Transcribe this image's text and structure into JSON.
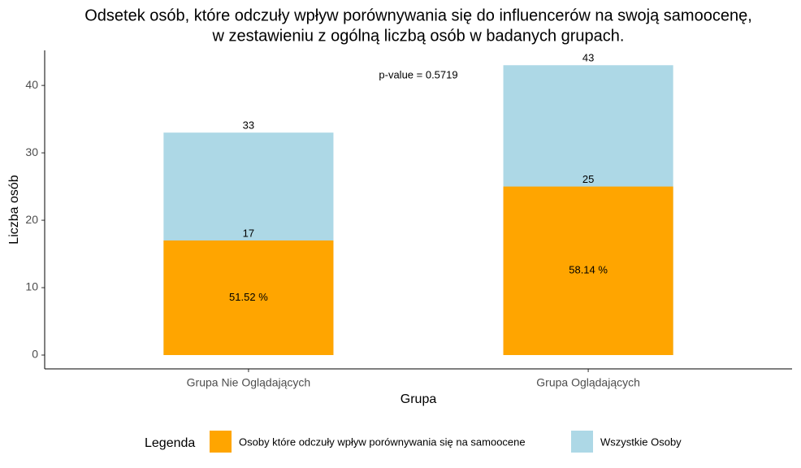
{
  "chart_data": {
    "type": "overlap-bar",
    "title": [
      "Odsetek osób, które odczuły wpływ porównywania się do influencerów na swoją samoocenę,",
      "w zestawieniu z ogólną liczbą osób w badanych grupach."
    ],
    "x_label": "Grupa",
    "y_label": "Liczba osób",
    "categories": [
      "Grupa Nie Oglądających",
      "Grupa Oglądających"
    ],
    "series": [
      {
        "name": "Wszystkie Osoby",
        "color": "#ADD8E6",
        "values": [
          33,
          43
        ]
      },
      {
        "name": "Osoby które odczuły wpływ porównywania się na samoocene",
        "color": "#FFA500",
        "values": [
          17,
          25
        ]
      }
    ],
    "percent_labels": [
      "51.52 %",
      "58.14 %"
    ],
    "annotation": "p-value = 0.5719",
    "legend_title": "Legenda",
    "legend_position": "bottom",
    "ylim": [
      -2.05,
      45.2
    ],
    "yticks": [
      0,
      10,
      20,
      30,
      40
    ]
  }
}
